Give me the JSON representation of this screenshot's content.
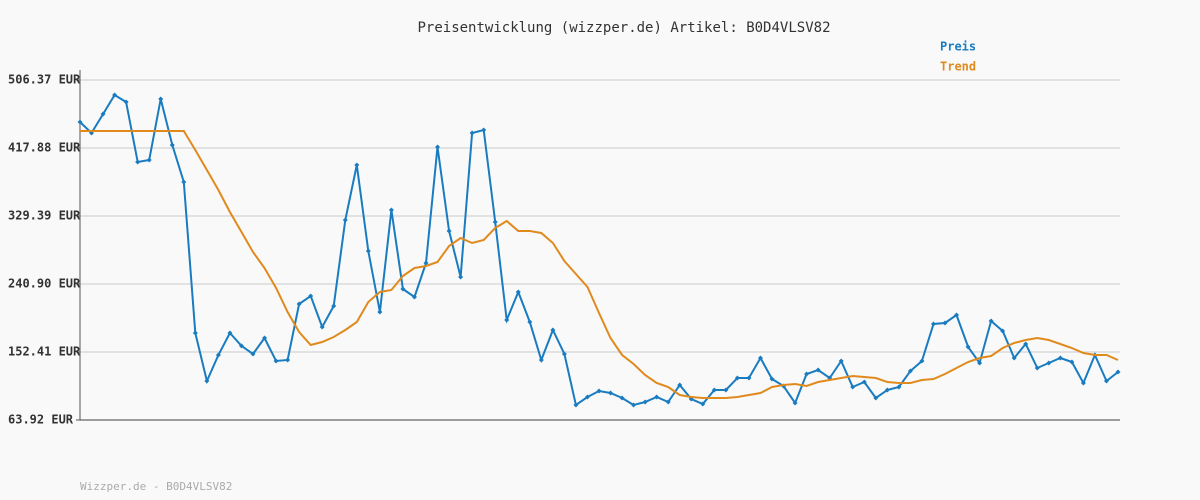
{
  "chart_data": {
    "type": "line",
    "title": "Preisentwicklung (wizzper.de) Artikel: B0D4VLSV82",
    "footer": "Wizzper.de - B0D4VLSV82",
    "ylim": [
      63.92,
      506.37
    ],
    "yticks": [
      {
        "value": 63.92,
        "label": "63.92 EUR"
      },
      {
        "value": 152.41,
        "label": "152.41 EUR"
      },
      {
        "value": 240.9,
        "label": "240.90 EUR"
      },
      {
        "value": 329.39,
        "label": "329.39 EUR"
      },
      {
        "value": 417.88,
        "label": "417.88 EUR"
      },
      {
        "value": 506.37,
        "label": "506.37 EUR"
      }
    ],
    "grid": true,
    "legend": "top-right",
    "series": [
      {
        "name": "Preis",
        "color": "#1a7cc0",
        "markers": true,
        "values": [
          451.7,
          437.4,
          462.1,
          486.9,
          477.7,
          399.7,
          402.3,
          481.6,
          421.8,
          373.6,
          177.2,
          114.7,
          148.5,
          177.2,
          160.3,
          149.8,
          170.6,
          140.7,
          142.0,
          214.9,
          225.3,
          185.0,
          212.3,
          324.2,
          395.8,
          283.9,
          204.5,
          337.2,
          234.4,
          224.0,
          268.2,
          419.2,
          309.9,
          250.0,
          437.4,
          441.3,
          321.6,
          194.1,
          230.5,
          191.5,
          142.0,
          181.1,
          149.8,
          83.5,
          93.9,
          101.7,
          99.1,
          92.6,
          83.5,
          87.4,
          93.9,
          87.4,
          109.5,
          91.3,
          84.8,
          103.0,
          103.0,
          118.6,
          118.6,
          144.6,
          117.3,
          108.2,
          86.1,
          123.8,
          129.0,
          118.6,
          140.7,
          106.9,
          113.4,
          92.6,
          103.0,
          106.9,
          127.7,
          140.7,
          188.9,
          190.2,
          200.6,
          159.0,
          138.1,
          192.8,
          179.8,
          144.6,
          162.9,
          131.6,
          138.1,
          144.6,
          139.4,
          112.1,
          148.5,
          114.7,
          126.4
        ]
      },
      {
        "name": "Trend",
        "color": "#e08a1e",
        "markers": false,
        "values": [
          440.0,
          440.0,
          440.0,
          440.0,
          440.0,
          440.0,
          440.0,
          440.0,
          440.0,
          440.0,
          415.3,
          389.3,
          363.2,
          334.6,
          308.6,
          282.5,
          261.7,
          235.7,
          204.5,
          178.4,
          161.5,
          165.4,
          171.9,
          181.0,
          191.5,
          217.5,
          230.5,
          233.1,
          251.3,
          261.7,
          264.3,
          269.5,
          290.4,
          300.8,
          294.3,
          298.2,
          313.8,
          322.9,
          309.9,
          309.9,
          307.3,
          294.3,
          270.8,
          253.9,
          237.0,
          203.2,
          170.6,
          148.5,
          136.8,
          122.5,
          112.1,
          106.9,
          96.5,
          93.9,
          92.6,
          92.6,
          92.6,
          93.9,
          96.5,
          99.1,
          106.9,
          109.5,
          110.8,
          108.2,
          113.4,
          116.0,
          118.6,
          121.2,
          119.9,
          118.6,
          113.4,
          112.1,
          112.1,
          116.0,
          117.3,
          123.8,
          131.6,
          139.4,
          144.6,
          147.2,
          157.6,
          164.1,
          168.0,
          170.6,
          168.0,
          162.8,
          157.6,
          151.1,
          148.5,
          148.5,
          142.0
        ]
      }
    ]
  }
}
